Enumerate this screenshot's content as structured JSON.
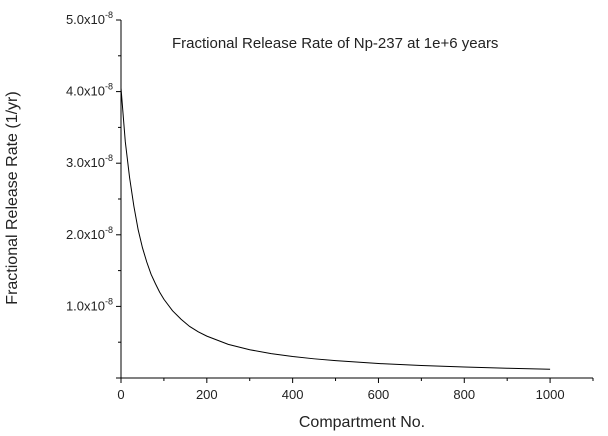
{
  "chart_data": {
    "type": "line",
    "title": "Fractional Release Rate of Np-237 at 1e+6 years",
    "xlabel": "Compartment No.",
    "ylabel": "Fractional Release Rate (1/yr)",
    "xlim": [
      0,
      1100
    ],
    "ylim": [
      0,
      5e-08
    ],
    "xticks": [
      0,
      200,
      400,
      600,
      800,
      1000
    ],
    "xtick_labels": [
      "0",
      "200",
      "400",
      "600",
      "800",
      "1000"
    ],
    "yticks": [
      1e-08,
      2e-08,
      3e-08,
      4e-08,
      5e-08
    ],
    "ytick_labels": [
      {
        "mantissa": "1.0x10",
        "exponent": "-8"
      },
      {
        "mantissa": "2.0x10",
        "exponent": "-8"
      },
      {
        "mantissa": "3.0x10",
        "exponent": "-8"
      },
      {
        "mantissa": "4.0x10",
        "exponent": "-8"
      },
      {
        "mantissa": "5.0x10",
        "exponent": "-8"
      }
    ],
    "grid": false,
    "legend": "none",
    "series": [
      {
        "color": "#000000",
        "x": [
          0,
          10,
          20,
          30,
          40,
          50,
          60,
          70,
          80,
          90,
          100,
          120,
          140,
          160,
          180,
          200,
          250,
          300,
          350,
          400,
          450,
          500,
          600,
          700,
          800,
          900,
          1000
        ],
        "y": [
          4.05e-08,
          3.3e-08,
          2.8e-08,
          2.4e-08,
          2.07e-08,
          1.82e-08,
          1.62e-08,
          1.45e-08,
          1.32e-08,
          1.2e-08,
          1.1e-08,
          9.4e-09,
          8.2e-09,
          7.2e-09,
          6.45e-09,
          5.85e-09,
          4.7e-09,
          3.95e-09,
          3.4e-09,
          3e-09,
          2.68e-09,
          2.42e-09,
          2.02e-09,
          1.75e-09,
          1.53e-09,
          1.37e-09,
          1.23e-09
        ]
      }
    ]
  }
}
